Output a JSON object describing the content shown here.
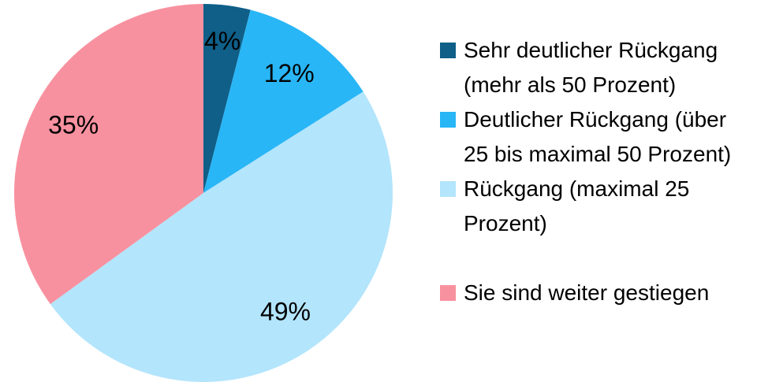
{
  "chart_data": {
    "type": "pie",
    "categories": [
      "Sehr deutlicher Rückgang (mehr als 50 Prozent)",
      "Deutlicher Rückgang (über 25 bis maximal 50 Prozent)",
      "Rückgang (maximal 25 Prozent)",
      "Sie sind weiter gestiegen"
    ],
    "values": [
      4,
      12,
      49,
      35
    ],
    "value_labels": [
      "4%",
      "12%",
      "49%",
      "35%"
    ],
    "colors": [
      "#0f5f88",
      "#29b6f6",
      "#b3e5fc",
      "#f8919f"
    ],
    "legend": "right"
  }
}
